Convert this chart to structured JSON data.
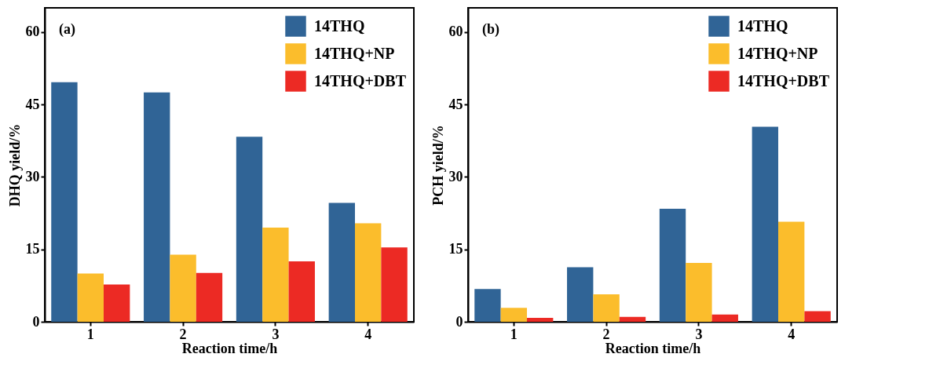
{
  "chart_data": [
    {
      "type": "bar",
      "annotations": [
        "(a)"
      ],
      "xlabel": "Reaction time/h",
      "ylabel": "DHQ yield/%",
      "categories": [
        "1",
        "2",
        "3",
        "4"
      ],
      "series": [
        {
          "name": "14THQ",
          "color": "#306496",
          "values": [
            49.6,
            47.5,
            38.3,
            24.6
          ]
        },
        {
          "name": "14THQ+NP",
          "color": "#fbbd2c",
          "values": [
            10.0,
            13.9,
            19.5,
            20.4
          ]
        },
        {
          "name": "14THQ+DBT",
          "color": "#ec2a24",
          "values": [
            7.7,
            10.1,
            12.5,
            15.4
          ]
        }
      ],
      "ylim": [
        0,
        65
      ],
      "yticks": [
        0,
        15,
        30,
        45,
        60
      ],
      "legend": "top right"
    },
    {
      "type": "bar",
      "annotations": [
        "(b)"
      ],
      "xlabel": "Reaction time/h",
      "ylabel": "PCH yield/%",
      "categories": [
        "1",
        "2",
        "3",
        "4"
      ],
      "series": [
        {
          "name": "14THQ",
          "color": "#306496",
          "values": [
            6.8,
            11.3,
            23.4,
            40.4
          ]
        },
        {
          "name": "14THQ+NP",
          "color": "#fbbd2c",
          "values": [
            2.9,
            5.7,
            12.2,
            20.7
          ]
        },
        {
          "name": "14THQ+DBT",
          "color": "#ec2a24",
          "values": [
            0.8,
            1.0,
            1.5,
            2.2
          ]
        }
      ],
      "ylim": [
        0,
        65
      ],
      "yticks": [
        0,
        15,
        30,
        45,
        60
      ],
      "legend": "top right"
    }
  ]
}
